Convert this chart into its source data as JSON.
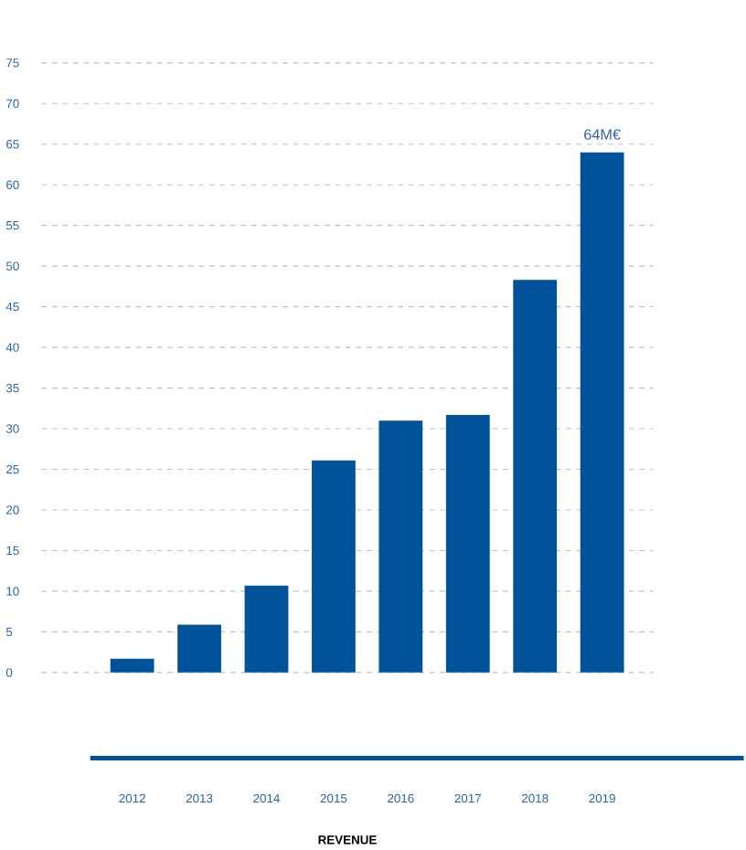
{
  "chart_data": {
    "type": "bar",
    "xlabel": "REVENUE",
    "categories": [
      "2012",
      "2013",
      "2014",
      "2015",
      "2016",
      "2017",
      "2018",
      "2019"
    ],
    "values": [
      1.7,
      5.9,
      10.7,
      26.1,
      31.0,
      31.7,
      48.3,
      64
    ],
    "color": "#00529b",
    "ylim": [
      0,
      75
    ],
    "yticks": [
      0,
      5,
      10,
      15,
      20,
      25,
      30,
      35,
      40,
      45,
      50,
      55,
      60,
      65,
      70,
      75
    ],
    "grid": "y",
    "annotations": [
      {
        "text": "64M€",
        "x": "2019",
        "y": 64
      }
    ]
  }
}
